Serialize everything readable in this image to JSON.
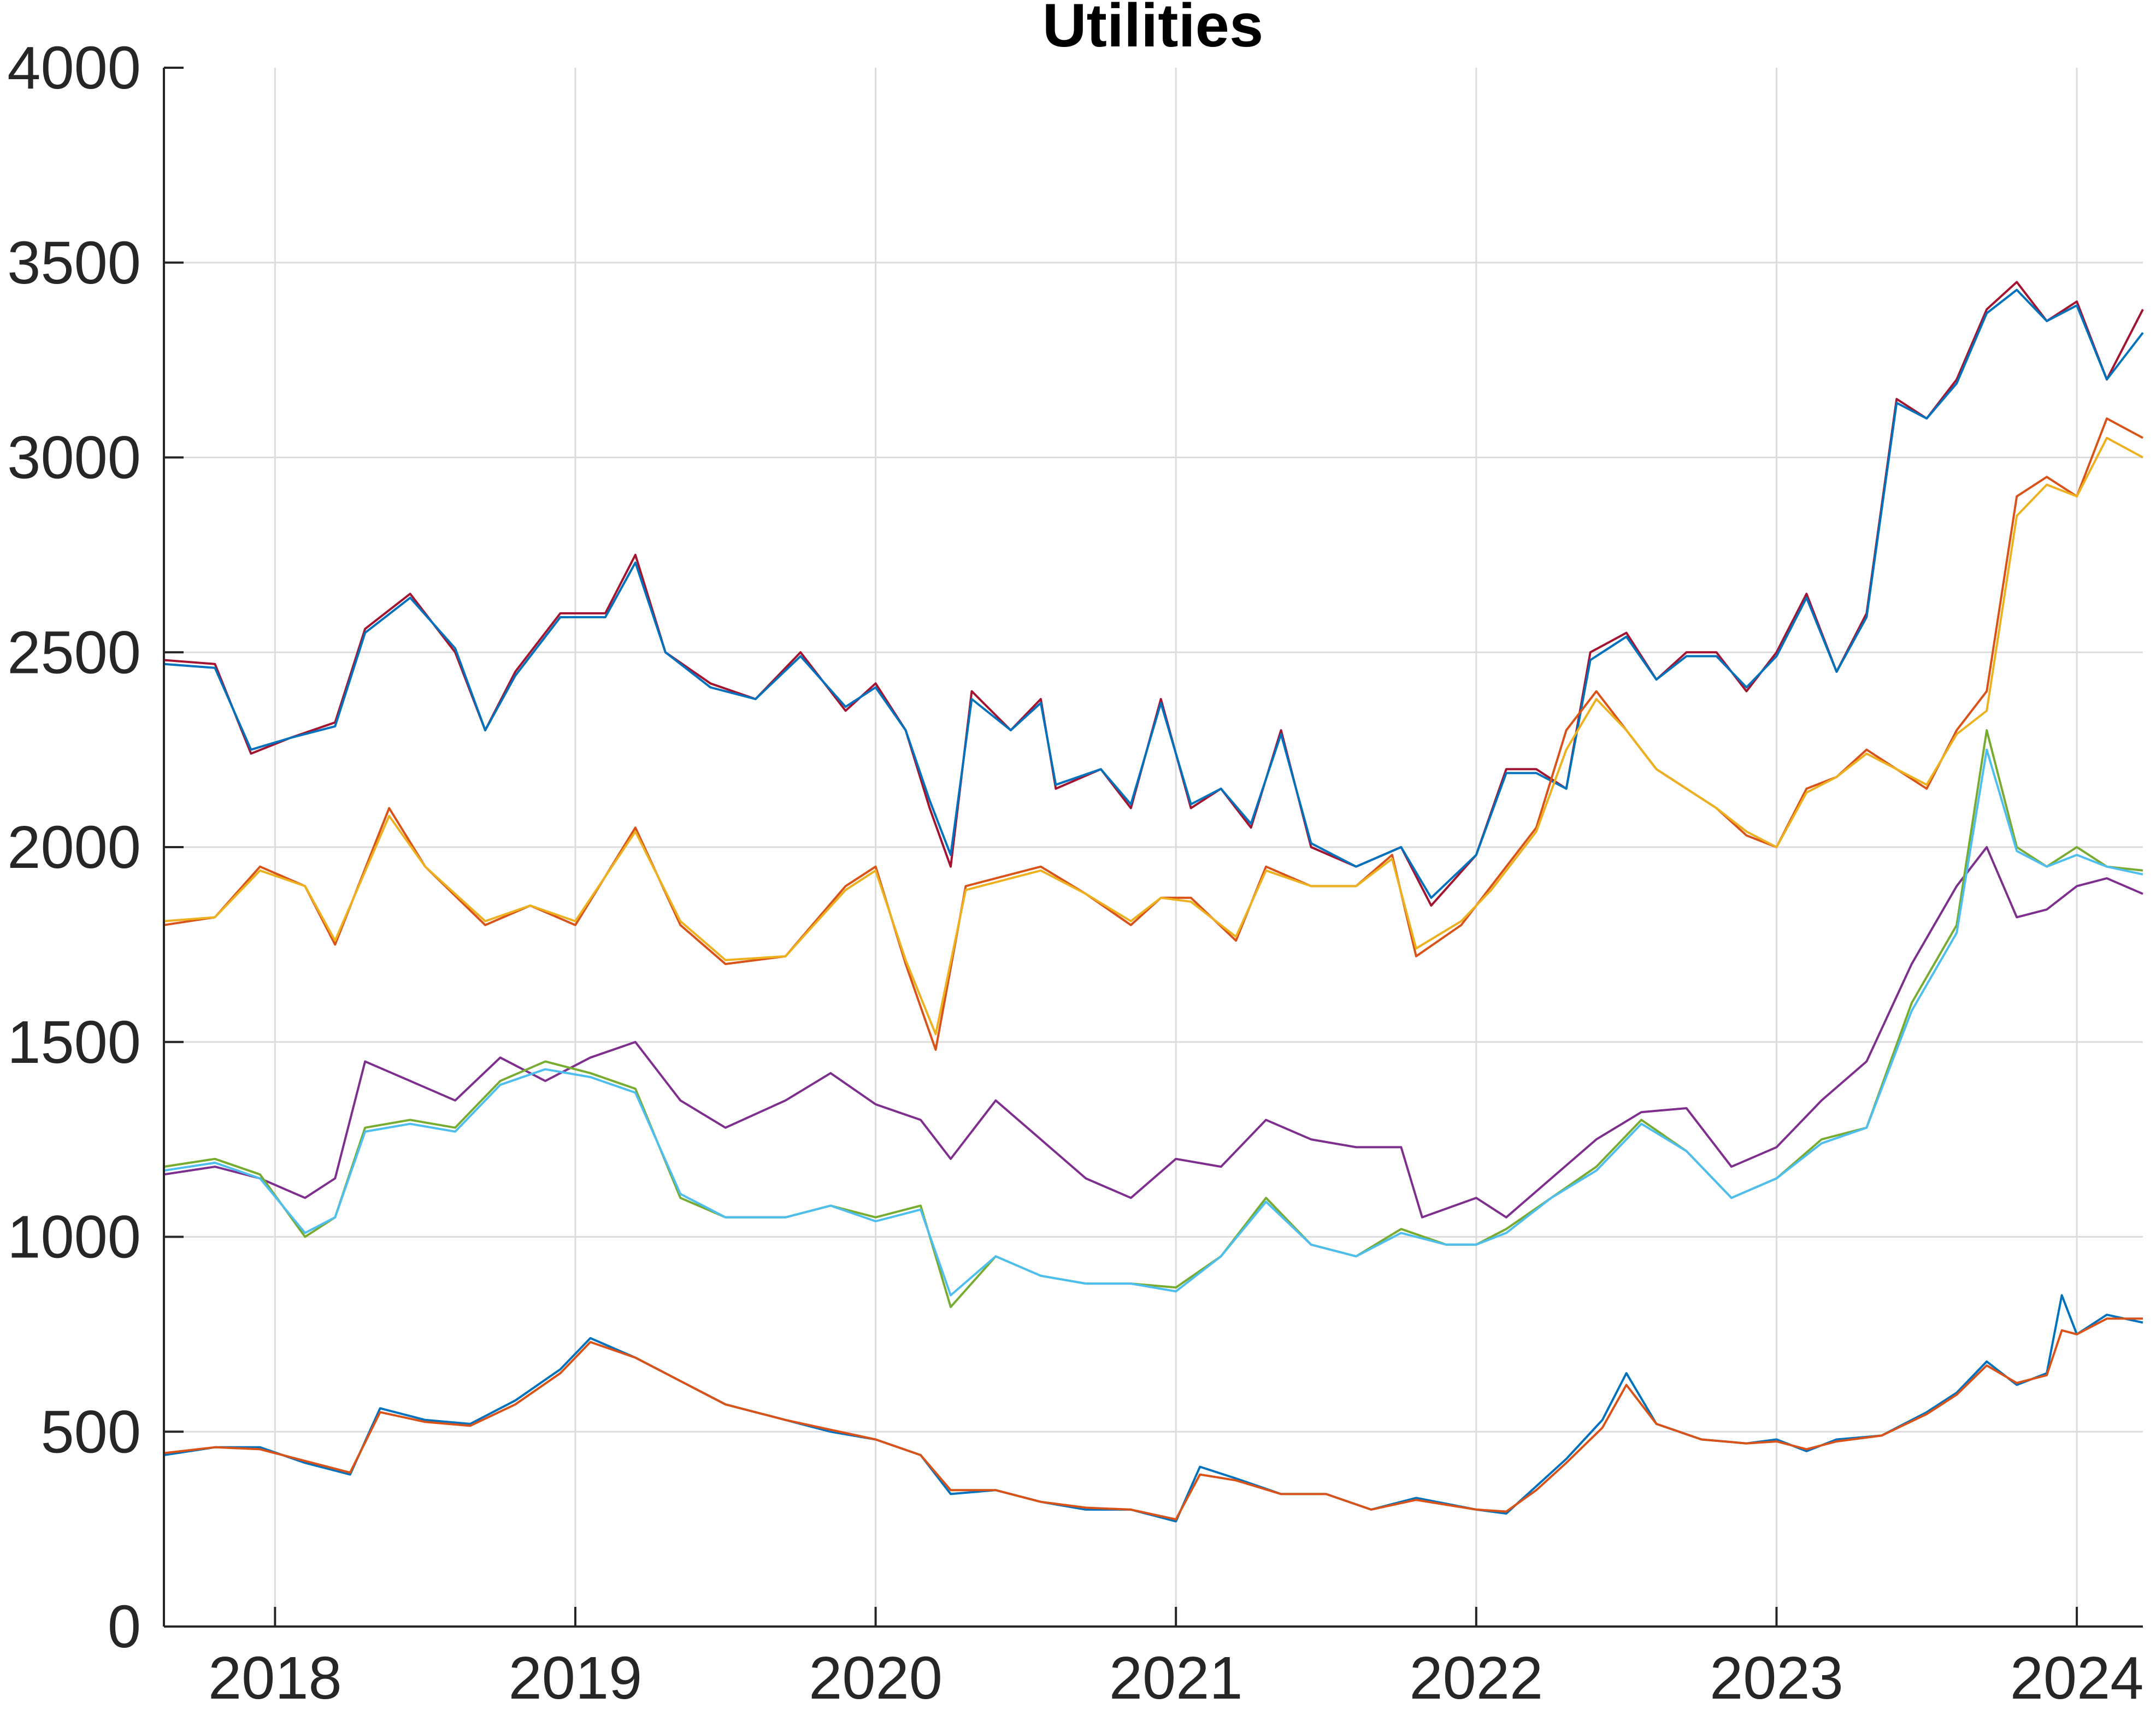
{
  "chart_data": {
    "type": "line",
    "title": "Utilities",
    "xlabel": "",
    "ylabel": "",
    "xlim": [
      2017.63,
      2024.22
    ],
    "ylim": [
      0,
      4000
    ],
    "xticks": [
      2018,
      2019,
      2020,
      2021,
      2022,
      2023,
      2024
    ],
    "xtick_labels": [
      "2018",
      "2019",
      "2020",
      "2021",
      "2022",
      "2023",
      "2024"
    ],
    "yticks": [
      0,
      500,
      1000,
      1500,
      2000,
      2500,
      3000,
      3500,
      4000
    ],
    "ytick_labels": [
      "0",
      "500",
      "1000",
      "1500",
      "2000",
      "2500",
      "3000",
      "3500",
      "4000"
    ],
    "grid": true,
    "legend": "none",
    "series": [
      {
        "color": "#A2142F",
        "x": [
          2017.63,
          2017.8,
          2017.92,
          2018.05,
          2018.2,
          2018.3,
          2018.45,
          2018.6,
          2018.7,
          2018.8,
          2018.95,
          2019.1,
          2019.2,
          2019.3,
          2019.45,
          2019.6,
          2019.75,
          2019.9,
          2020.0,
          2020.1,
          2020.18,
          2020.25,
          2020.32,
          2020.45,
          2020.55,
          2020.6,
          2020.75,
          2020.85,
          2020.95,
          2021.05,
          2021.15,
          2021.25,
          2021.35,
          2021.45,
          2021.6,
          2021.75,
          2021.85,
          2022.0,
          2022.1,
          2022.2,
          2022.3,
          2022.38,
          2022.5,
          2022.6,
          2022.7,
          2022.8,
          2022.9,
          2023.0,
          2023.1,
          2023.2,
          2023.3,
          2023.4,
          2023.5,
          2023.6,
          2023.7,
          2023.8,
          2023.9,
          2024.0,
          2024.1,
          2024.22
        ],
        "y": [
          2480,
          2470,
          2240,
          2280,
          2320,
          2560,
          2650,
          2500,
          2300,
          2450,
          2600,
          2600,
          2750,
          2500,
          2420,
          2380,
          2500,
          2350,
          2420,
          2300,
          2100,
          1950,
          2400,
          2300,
          2380,
          2150,
          2200,
          2100,
          2380,
          2100,
          2150,
          2050,
          2300,
          2000,
          1950,
          2000,
          1850,
          1980,
          2200,
          2200,
          2150,
          2500,
          2550,
          2430,
          2500,
          2500,
          2400,
          2500,
          2650,
          2450,
          2600,
          3150,
          3100,
          3200,
          3380,
          3450,
          3350,
          3400,
          3200,
          3380
        ]
      },
      {
        "color": "#0072BD",
        "x": [
          2017.63,
          2017.8,
          2017.92,
          2018.05,
          2018.2,
          2018.3,
          2018.45,
          2018.6,
          2018.7,
          2018.8,
          2018.95,
          2019.1,
          2019.2,
          2019.3,
          2019.45,
          2019.6,
          2019.75,
          2019.9,
          2020.0,
          2020.1,
          2020.18,
          2020.25,
          2020.32,
          2020.45,
          2020.55,
          2020.6,
          2020.75,
          2020.85,
          2020.95,
          2021.05,
          2021.15,
          2021.25,
          2021.35,
          2021.45,
          2021.6,
          2021.75,
          2021.85,
          2022.0,
          2022.1,
          2022.2,
          2022.3,
          2022.38,
          2022.5,
          2022.6,
          2022.7,
          2022.8,
          2022.9,
          2023.0,
          2023.1,
          2023.2,
          2023.3,
          2023.4,
          2023.5,
          2023.6,
          2023.7,
          2023.8,
          2023.9,
          2024.0,
          2024.1,
          2024.22
        ],
        "y": [
          2470,
          2460,
          2250,
          2280,
          2310,
          2550,
          2640,
          2510,
          2300,
          2440,
          2590,
          2590,
          2730,
          2500,
          2410,
          2380,
          2490,
          2360,
          2410,
          2300,
          2120,
          1980,
          2380,
          2300,
          2370,
          2160,
          2200,
          2110,
          2370,
          2110,
          2150,
          2060,
          2290,
          2010,
          1950,
          2000,
          1870,
          1980,
          2190,
          2190,
          2150,
          2480,
          2540,
          2430,
          2490,
          2490,
          2410,
          2490,
          2640,
          2450,
          2590,
          3140,
          3100,
          3190,
          3370,
          3430,
          3350,
          3390,
          3200,
          3320
        ]
      },
      {
        "color": "#D95319",
        "x": [
          2017.63,
          2017.8,
          2017.95,
          2018.1,
          2018.2,
          2018.38,
          2018.5,
          2018.7,
          2018.85,
          2019.0,
          2019.2,
          2019.35,
          2019.5,
          2019.7,
          2019.9,
          2020.0,
          2020.1,
          2020.2,
          2020.3,
          2020.45,
          2020.55,
          2020.7,
          2020.85,
          2020.95,
          2021.05,
          2021.2,
          2021.3,
          2021.45,
          2021.6,
          2021.72,
          2021.8,
          2021.95,
          2022.05,
          2022.2,
          2022.3,
          2022.4,
          2022.5,
          2022.6,
          2022.7,
          2022.8,
          2022.9,
          2023.0,
          2023.1,
          2023.2,
          2023.3,
          2023.4,
          2023.5,
          2023.6,
          2023.7,
          2023.8,
          2023.9,
          2024.0,
          2024.1,
          2024.22
        ],
        "y": [
          1800,
          1820,
          1950,
          1900,
          1750,
          2100,
          1950,
          1800,
          1850,
          1800,
          2050,
          1800,
          1700,
          1720,
          1900,
          1950,
          1700,
          1480,
          1900,
          1930,
          1950,
          1880,
          1800,
          1870,
          1870,
          1760,
          1950,
          1900,
          1900,
          1980,
          1720,
          1800,
          1900,
          2050,
          2300,
          2400,
          2300,
          2200,
          2150,
          2100,
          2030,
          2000,
          2150,
          2180,
          2250,
          2200,
          2150,
          2300,
          2400,
          2900,
          2950,
          2900,
          3100,
          3050
        ]
      },
      {
        "color": "#EDB120",
        "x": [
          2017.63,
          2017.8,
          2017.95,
          2018.1,
          2018.2,
          2018.38,
          2018.5,
          2018.7,
          2018.85,
          2019.0,
          2019.2,
          2019.35,
          2019.5,
          2019.7,
          2019.9,
          2020.0,
          2020.1,
          2020.2,
          2020.3,
          2020.45,
          2020.55,
          2020.7,
          2020.85,
          2020.95,
          2021.05,
          2021.2,
          2021.3,
          2021.45,
          2021.6,
          2021.72,
          2021.8,
          2021.95,
          2022.05,
          2022.2,
          2022.3,
          2022.4,
          2022.5,
          2022.6,
          2022.7,
          2022.8,
          2022.9,
          2023.0,
          2023.1,
          2023.2,
          2023.3,
          2023.4,
          2023.5,
          2023.6,
          2023.7,
          2023.8,
          2023.9,
          2024.0,
          2024.1,
          2024.22
        ],
        "y": [
          1810,
          1820,
          1940,
          1900,
          1760,
          2080,
          1950,
          1810,
          1850,
          1810,
          2040,
          1810,
          1710,
          1720,
          1890,
          1940,
          1710,
          1520,
          1890,
          1920,
          1940,
          1880,
          1810,
          1870,
          1860,
          1770,
          1940,
          1900,
          1900,
          1970,
          1740,
          1810,
          1890,
          2040,
          2250,
          2380,
          2300,
          2200,
          2150,
          2100,
          2040,
          2000,
          2140,
          2180,
          2240,
          2200,
          2160,
          2290,
          2350,
          2850,
          2930,
          2900,
          3050,
          3000
        ]
      },
      {
        "color": "#7E2F8E",
        "x": [
          2017.63,
          2017.8,
          2017.95,
          2018.1,
          2018.2,
          2018.3,
          2018.45,
          2018.6,
          2018.75,
          2018.9,
          2019.05,
          2019.2,
          2019.35,
          2019.5,
          2019.7,
          2019.85,
          2020.0,
          2020.15,
          2020.25,
          2020.4,
          2020.55,
          2020.7,
          2020.85,
          2021.0,
          2021.15,
          2021.3,
          2021.45,
          2021.6,
          2021.75,
          2021.82,
          2022.0,
          2022.1,
          2022.25,
          2022.4,
          2022.55,
          2022.7,
          2022.85,
          2023.0,
          2023.15,
          2023.3,
          2023.45,
          2023.6,
          2023.7,
          2023.8,
          2023.9,
          2024.0,
          2024.1,
          2024.22
        ],
        "y": [
          1160,
          1180,
          1150,
          1100,
          1150,
          1450,
          1400,
          1350,
          1460,
          1400,
          1460,
          1500,
          1350,
          1280,
          1350,
          1420,
          1340,
          1300,
          1200,
          1350,
          1250,
          1150,
          1100,
          1200,
          1180,
          1300,
          1250,
          1230,
          1230,
          1050,
          1100,
          1050,
          1150,
          1250,
          1320,
          1330,
          1180,
          1230,
          1350,
          1450,
          1700,
          1900,
          2000,
          1820,
          1840,
          1900,
          1920,
          1880
        ]
      },
      {
        "color": "#77AC30",
        "x": [
          2017.63,
          2017.8,
          2017.95,
          2018.1,
          2018.2,
          2018.3,
          2018.45,
          2018.6,
          2018.75,
          2018.9,
          2019.05,
          2019.2,
          2019.35,
          2019.5,
          2019.7,
          2019.85,
          2020.0,
          2020.15,
          2020.25,
          2020.4,
          2020.55,
          2020.7,
          2020.85,
          2021.0,
          2021.15,
          2021.3,
          2021.45,
          2021.6,
          2021.75,
          2021.9,
          2022.0,
          2022.1,
          2022.25,
          2022.4,
          2022.55,
          2022.7,
          2022.85,
          2023.0,
          2023.15,
          2023.3,
          2023.45,
          2023.6,
          2023.7,
          2023.8,
          2023.9,
          2024.0,
          2024.1,
          2024.22
        ],
        "y": [
          1180,
          1200,
          1160,
          1000,
          1050,
          1280,
          1300,
          1280,
          1400,
          1450,
          1420,
          1380,
          1100,
          1050,
          1050,
          1080,
          1050,
          1080,
          820,
          950,
          900,
          880,
          880,
          870,
          950,
          1100,
          980,
          950,
          1020,
          980,
          980,
          1020,
          1100,
          1180,
          1300,
          1220,
          1100,
          1150,
          1250,
          1280,
          1600,
          1800,
          2300,
          2000,
          1950,
          2000,
          1950,
          1940
        ]
      },
      {
        "color": "#4DBEEE",
        "x": [
          2017.63,
          2017.8,
          2017.95,
          2018.1,
          2018.2,
          2018.3,
          2018.45,
          2018.6,
          2018.75,
          2018.9,
          2019.05,
          2019.2,
          2019.35,
          2019.5,
          2019.7,
          2019.85,
          2020.0,
          2020.15,
          2020.25,
          2020.4,
          2020.55,
          2020.7,
          2020.85,
          2021.0,
          2021.15,
          2021.3,
          2021.45,
          2021.6,
          2021.75,
          2021.9,
          2022.0,
          2022.1,
          2022.25,
          2022.4,
          2022.55,
          2022.7,
          2022.85,
          2023.0,
          2023.15,
          2023.3,
          2023.45,
          2023.6,
          2023.7,
          2023.8,
          2023.9,
          2024.0,
          2024.1,
          2024.22
        ],
        "y": [
          1170,
          1190,
          1150,
          1010,
          1050,
          1270,
          1290,
          1270,
          1390,
          1430,
          1410,
          1370,
          1110,
          1050,
          1050,
          1080,
          1040,
          1070,
          850,
          950,
          900,
          880,
          880,
          860,
          950,
          1090,
          980,
          950,
          1010,
          980,
          980,
          1010,
          1100,
          1170,
          1290,
          1220,
          1100,
          1150,
          1240,
          1280,
          1580,
          1780,
          2250,
          1990,
          1950,
          1980,
          1950,
          1930
        ]
      },
      {
        "color": "#0072BD",
        "x": [
          2017.63,
          2017.8,
          2017.95,
          2018.1,
          2018.25,
          2018.35,
          2018.5,
          2018.65,
          2018.8,
          2018.95,
          2019.05,
          2019.2,
          2019.35,
          2019.5,
          2019.7,
          2019.85,
          2020.0,
          2020.15,
          2020.25,
          2020.4,
          2020.55,
          2020.7,
          2020.85,
          2021.0,
          2021.08,
          2021.2,
          2021.35,
          2021.5,
          2021.65,
          2021.8,
          2022.0,
          2022.1,
          2022.2,
          2022.3,
          2022.42,
          2022.5,
          2022.6,
          2022.75,
          2022.9,
          2023.0,
          2023.1,
          2023.2,
          2023.35,
          2023.5,
          2023.6,
          2023.7,
          2023.8,
          2023.9,
          2023.95,
          2024.0,
          2024.1,
          2024.22
        ],
        "y": [
          440,
          460,
          460,
          420,
          390,
          560,
          530,
          520,
          580,
          660,
          740,
          690,
          630,
          570,
          530,
          500,
          480,
          440,
          340,
          350,
          320,
          300,
          300,
          270,
          410,
          380,
          340,
          340,
          300,
          330,
          300,
          290,
          360,
          430,
          530,
          650,
          520,
          480,
          470,
          480,
          450,
          480,
          490,
          550,
          600,
          680,
          620,
          650,
          850,
          750,
          800,
          780
        ]
      },
      {
        "color": "#D95319",
        "x": [
          2017.63,
          2017.8,
          2017.95,
          2018.1,
          2018.25,
          2018.35,
          2018.5,
          2018.65,
          2018.8,
          2018.95,
          2019.05,
          2019.2,
          2019.35,
          2019.5,
          2019.7,
          2019.85,
          2020.0,
          2020.15,
          2020.25,
          2020.4,
          2020.55,
          2020.7,
          2020.85,
          2021.0,
          2021.08,
          2021.2,
          2021.35,
          2021.5,
          2021.65,
          2021.8,
          2022.0,
          2022.1,
          2022.2,
          2022.3,
          2022.42,
          2022.5,
          2022.6,
          2022.75,
          2022.9,
          2023.0,
          2023.1,
          2023.2,
          2023.35,
          2023.5,
          2023.6,
          2023.7,
          2023.8,
          2023.9,
          2023.95,
          2024.0,
          2024.1,
          2024.22
        ],
        "y": [
          445,
          460,
          455,
          425,
          395,
          550,
          525,
          515,
          570,
          650,
          730,
          690,
          630,
          570,
          530,
          505,
          480,
          440,
          350,
          350,
          320,
          305,
          300,
          275,
          390,
          375,
          340,
          340,
          300,
          325,
          300,
          295,
          350,
          420,
          510,
          620,
          520,
          480,
          470,
          475,
          455,
          475,
          490,
          545,
          595,
          670,
          625,
          645,
          760,
          750,
          790,
          790
        ]
      }
    ]
  }
}
